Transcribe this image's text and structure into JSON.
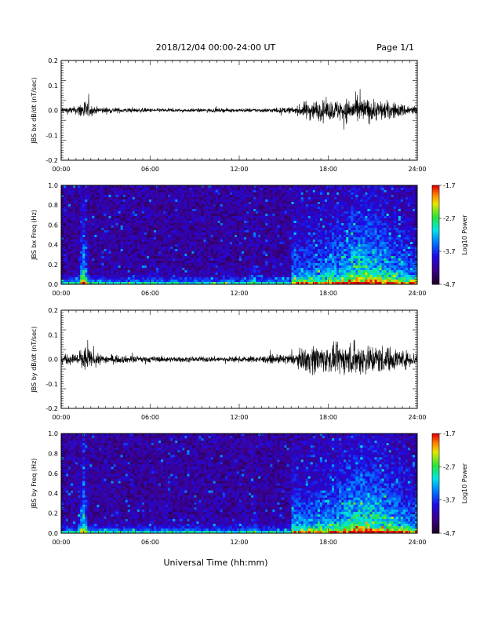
{
  "header": {
    "date_range": "2018/12/04  00:00-24:00 UT",
    "page": "Page 1/1"
  },
  "footer": {
    "xlabel": "Universal Time (hh:mm)"
  },
  "chart_data": [
    {
      "type": "line",
      "ylabel": "JBS bx dB/dt (nT/sec)",
      "xlim": [
        0,
        24
      ],
      "ylim": [
        -0.2,
        0.2
      ],
      "yticks": [
        "0.2",
        "0.1",
        "0.0",
        "-0.1",
        "-0.2"
      ],
      "xticks": [
        "00:00",
        "06:00",
        "12:00",
        "18:00",
        "24:00"
      ],
      "envelope": {
        "t_hours": [
          0,
          1,
          1.5,
          2.2,
          4,
          8,
          10,
          12,
          14,
          15.8,
          16.5,
          17,
          18,
          19,
          20,
          21,
          22,
          23,
          24
        ],
        "amp": [
          0.018,
          0.02,
          0.06,
          0.02,
          0.013,
          0.009,
          0.01,
          0.01,
          0.012,
          0.018,
          0.05,
          0.055,
          0.05,
          0.06,
          0.07,
          0.06,
          0.05,
          0.035,
          0.025
        ]
      }
    },
    {
      "type": "heatmap",
      "ylabel": "JBS bx Freq (Hz)",
      "xlim": [
        0,
        24
      ],
      "ylim": [
        0.0,
        1.0
      ],
      "yticks": [
        "1.0",
        "0.8",
        "0.6",
        "0.4",
        "0.2",
        "0.0"
      ],
      "xticks": [
        "00:00",
        "06:00",
        "12:00",
        "18:00",
        "24:00"
      ],
      "colorbar": {
        "label": "Log10 Power",
        "ticks": [
          "-1.7",
          "-2.7",
          "-3.7",
          "-4.7"
        ],
        "range": [
          -4.7,
          -1.7
        ]
      }
    },
    {
      "type": "line",
      "ylabel": "JBS by dB/dt (nT/sec)",
      "xlim": [
        0,
        24
      ],
      "ylim": [
        -0.2,
        0.2
      ],
      "yticks": [
        "0.2",
        "0.1",
        "0.0",
        "-0.1",
        "-0.2"
      ],
      "xticks": [
        "00:00",
        "06:00",
        "12:00",
        "18:00",
        "24:00"
      ],
      "envelope": {
        "t_hours": [
          0,
          1,
          1.5,
          2.2,
          4,
          8,
          10,
          12,
          14,
          15.8,
          16.5,
          17,
          18,
          19,
          20,
          21,
          22,
          23,
          24
        ],
        "amp": [
          0.025,
          0.03,
          0.08,
          0.03,
          0.02,
          0.014,
          0.015,
          0.015,
          0.02,
          0.03,
          0.07,
          0.08,
          0.07,
          0.08,
          0.09,
          0.08,
          0.07,
          0.05,
          0.035
        ]
      }
    },
    {
      "type": "heatmap",
      "ylabel": "JBS by Freq (Hz)",
      "xlim": [
        0,
        24
      ],
      "ylim": [
        0.0,
        1.0
      ],
      "yticks": [
        "1.0",
        "0.8",
        "0.6",
        "0.4",
        "0.2",
        "0.0"
      ],
      "xticks": [
        "00:00",
        "06:00",
        "12:00",
        "18:00",
        "24:00"
      ],
      "colorbar": {
        "label": "Log10 Power",
        "ticks": [
          "-1.7",
          "-2.7",
          "-3.7",
          "-4.7"
        ],
        "range": [
          -4.7,
          -1.7
        ]
      }
    }
  ]
}
